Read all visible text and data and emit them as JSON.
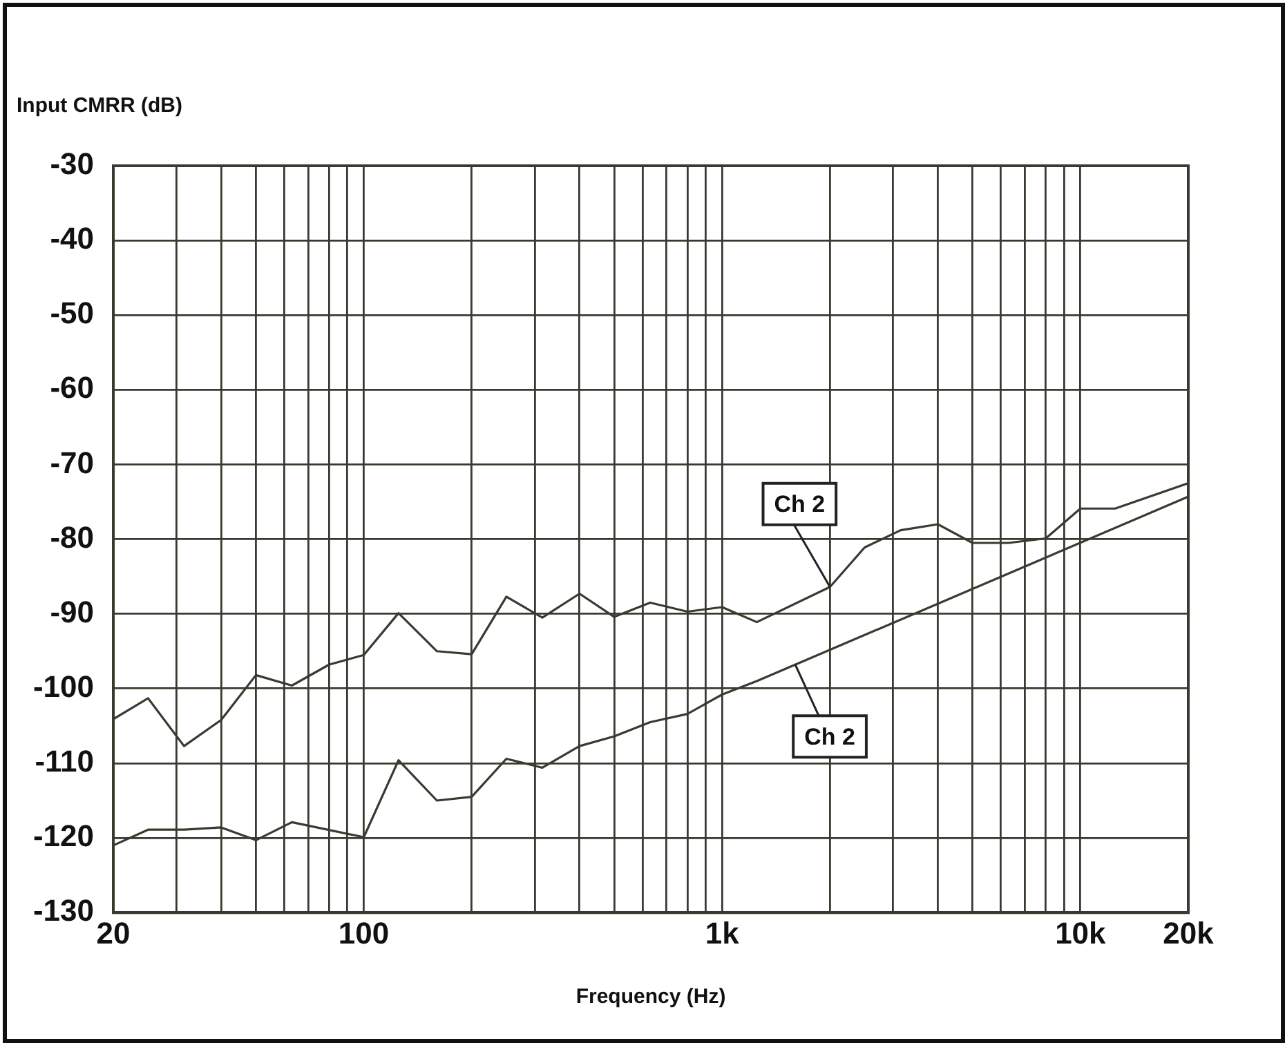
{
  "chart_data": {
    "type": "line",
    "xlabel": "Frequency (Hz)",
    "ylabel": "Input CMRR (dB)",
    "series": [
      {
        "color": "#3a3a30",
        "x": [
          20,
          25,
          31.5,
          40,
          50,
          63,
          80,
          100,
          125,
          160,
          200,
          250,
          315,
          400,
          500,
          630,
          800,
          1000,
          1250,
          2000,
          2500,
          3150,
          4000,
          5000,
          6300,
          8000,
          10000,
          12500,
          20000
        ],
        "values": [
          -104.1,
          -101.3,
          -107.7,
          -104.2,
          -98.2,
          -99.6,
          -96.8,
          -95.5,
          -89.9,
          -95.0,
          -95.4,
          -87.7,
          -90.5,
          -87.3,
          -90.4,
          -88.5,
          -89.7,
          -89.1,
          -91.1,
          -86.4,
          -81.1,
          -78.8,
          -78.0,
          -80.5,
          -80.5,
          -79.9,
          -75.9,
          -75.9,
          -72.5
        ]
      },
      {
        "color": "#3a3a30",
        "x": [
          20,
          25,
          31.5,
          40,
          50,
          63,
          100,
          125,
          160,
          200,
          250,
          315,
          400,
          500,
          630,
          800,
          1000,
          1250,
          20000
        ],
        "values": [
          -121.0,
          -118.9,
          -118.9,
          -118.6,
          -120.3,
          -117.9,
          -119.9,
          -109.6,
          -115.0,
          -114.5,
          -109.4,
          -110.6,
          -107.7,
          -106.4,
          -104.5,
          -103.4,
          -100.8,
          -99.0,
          -74.3
        ]
      }
    ],
    "annotations": [
      {
        "text": "Ch 2",
        "x": 2000,
        "y": -86.4
      },
      {
        "text": "Ch 2",
        "x": 1600,
        "y": -96.8
      }
    ],
    "log": "x",
    "xlim": [
      20,
      20000
    ],
    "xticks": [
      {
        "value": 20,
        "label": "20"
      },
      {
        "value": 30,
        "label": null
      },
      {
        "value": 40,
        "label": null
      },
      {
        "value": 50,
        "label": null
      },
      {
        "value": 60,
        "label": null
      },
      {
        "value": 70,
        "label": null
      },
      {
        "value": 80,
        "label": null
      },
      {
        "value": 90,
        "label": null
      },
      {
        "value": 100,
        "label": "100"
      },
      {
        "value": 200,
        "label": null
      },
      {
        "value": 300,
        "label": null
      },
      {
        "value": 400,
        "label": null
      },
      {
        "value": 500,
        "label": null
      },
      {
        "value": 600,
        "label": null
      },
      {
        "value": 700,
        "label": null
      },
      {
        "value": 800,
        "label": null
      },
      {
        "value": 900,
        "label": null
      },
      {
        "value": 1000,
        "label": "1k"
      },
      {
        "value": 2000,
        "label": null
      },
      {
        "value": 3000,
        "label": null
      },
      {
        "value": 4000,
        "label": null
      },
      {
        "value": 5000,
        "label": null
      },
      {
        "value": 6000,
        "label": null
      },
      {
        "value": 7000,
        "label": null
      },
      {
        "value": 8000,
        "label": null
      },
      {
        "value": 9000,
        "label": null
      },
      {
        "value": 10000,
        "label": "10k"
      },
      {
        "value": 20000,
        "label": "20k"
      }
    ],
    "ylim": [
      -130,
      -30
    ],
    "yticks": [
      -130,
      -120,
      -110,
      -100,
      -90,
      -80,
      -70,
      -60,
      -50,
      -40,
      -30
    ],
    "grid": true,
    "legend": false,
    "marker": "none",
    "line_style": "solid"
  }
}
